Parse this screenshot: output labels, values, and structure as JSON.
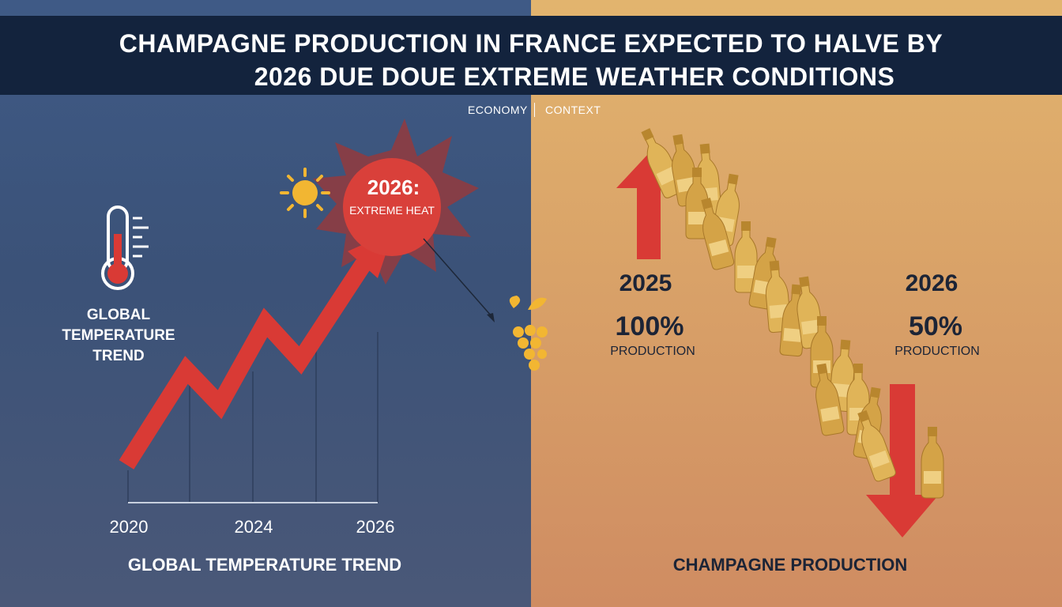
{
  "title": {
    "line1": "CHAMPAGNE PRODUCTION IN FRANCE EXPECTED TO HALVE BY",
    "line2": "2026 DUE DOUE EXTREME WEATHER CONDITIONS"
  },
  "categories": [
    "ECONOMY",
    "CONTEXT"
  ],
  "left_panel": {
    "thermometer_label": [
      "GLOBAL",
      "TEMPERATURE",
      "TREND"
    ],
    "sun_callout": {
      "year": "2026:",
      "text": "EXTREME HEAT"
    },
    "axis_years": [
      "2020",
      "2024",
      "2026"
    ],
    "caption": "GLOBAL TEMPERATURE TREND"
  },
  "right_panel": {
    "left_stat": {
      "year": "2025",
      "percent": "100%",
      "label": "PRODUCTION"
    },
    "right_stat": {
      "year": "2026",
      "percent": "50%",
      "label": "PRODUCTION"
    },
    "caption": "CHAMPAGNE PRODUCTION"
  },
  "colors": {
    "title_bar": "#13233d",
    "left_bg": "#3f5a86",
    "right_bg": "#d9a268",
    "trend_red": "#d93a35",
    "sun_yellow": "#f2b632",
    "bottle_gold": "#d8a84a"
  },
  "icons": [
    "thermometer-icon",
    "sun-icon",
    "grapes-icon",
    "up-arrow-icon",
    "down-arrow-icon",
    "champagne-bottle-icon"
  ]
}
